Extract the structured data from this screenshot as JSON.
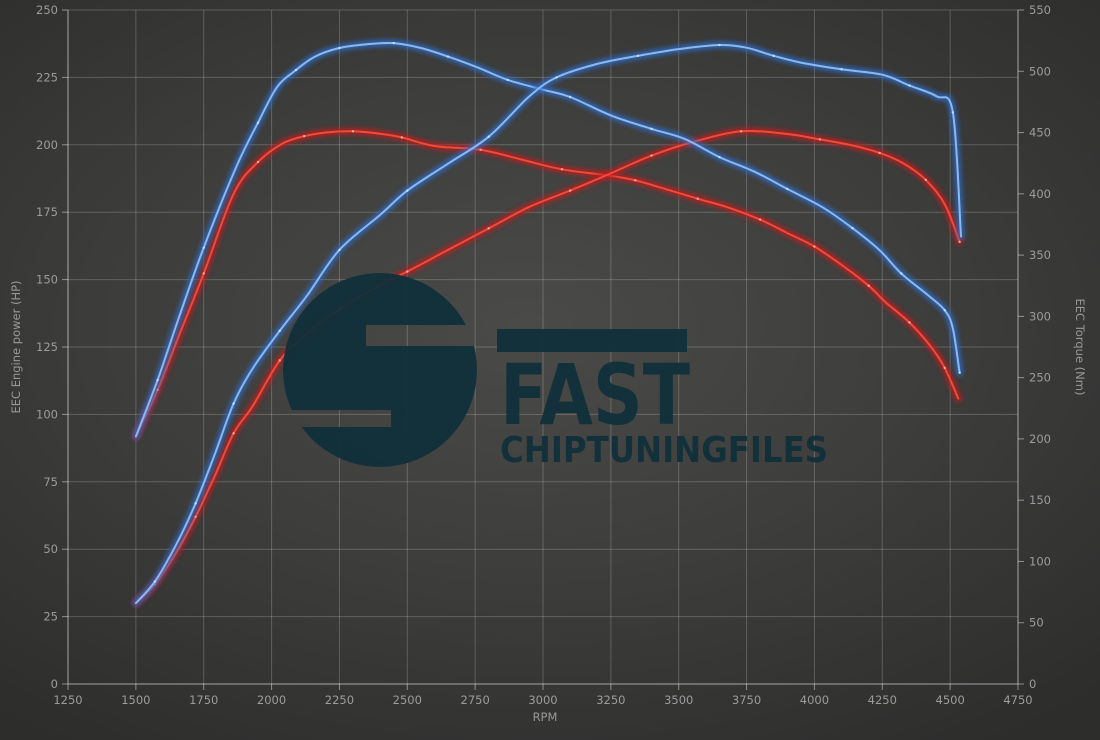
{
  "chart_data": {
    "type": "line",
    "x": {
      "label": "RPM",
      "min": 1250,
      "max": 4750,
      "ticks": [
        1250,
        1500,
        1750,
        2000,
        2250,
        2500,
        2750,
        3000,
        3250,
        3500,
        3750,
        4000,
        4250,
        4500,
        4750
      ]
    },
    "y_left": {
      "label": "EEC Engine power (HP)",
      "min": 0,
      "max": 250,
      "ticks": [
        0,
        25,
        50,
        75,
        100,
        125,
        150,
        175,
        200,
        225,
        250
      ]
    },
    "y_right": {
      "label": "EEC Torque (Nm)",
      "min": 0,
      "max": 550,
      "ticks": [
        0,
        50,
        100,
        150,
        200,
        250,
        300,
        350,
        400,
        450,
        500,
        550
      ]
    },
    "grid": {
      "vertical": true,
      "horizontal": true,
      "legend": "none"
    },
    "colors": {
      "blue_series": "#2f6cc8",
      "blue_core": "#8ab9ef",
      "red_series": "#bf1d1d",
      "red_core": "#f04a3a"
    },
    "series": [
      {
        "id": "red-torque",
        "axis": "right",
        "unit": "Nm",
        "color": "red",
        "points": [
          [
            1500,
            202
          ],
          [
            1580,
            240
          ],
          [
            1660,
            285
          ],
          [
            1750,
            335
          ],
          [
            1860,
            400
          ],
          [
            1950,
            426
          ],
          [
            2040,
            441
          ],
          [
            2120,
            447
          ],
          [
            2200,
            450
          ],
          [
            2300,
            451
          ],
          [
            2400,
            449
          ],
          [
            2480,
            446
          ],
          [
            2600,
            439
          ],
          [
            2770,
            436
          ],
          [
            2920,
            428
          ],
          [
            3070,
            420
          ],
          [
            3240,
            415
          ],
          [
            3340,
            411
          ],
          [
            3450,
            404
          ],
          [
            3570,
            396
          ],
          [
            3680,
            389
          ],
          [
            3800,
            379
          ],
          [
            3900,
            368
          ],
          [
            4000,
            357
          ],
          [
            4100,
            342
          ],
          [
            4200,
            325
          ],
          [
            4260,
            312
          ],
          [
            4350,
            295
          ],
          [
            4430,
            275
          ],
          [
            4480,
            258
          ],
          [
            4530,
            233
          ]
        ]
      },
      {
        "id": "red-power",
        "axis": "left",
        "unit": "HP",
        "color": "red",
        "points": [
          [
            1500,
            30
          ],
          [
            1570,
            37
          ],
          [
            1650,
            49
          ],
          [
            1720,
            62
          ],
          [
            1790,
            77
          ],
          [
            1860,
            93
          ],
          [
            1930,
            103
          ],
          [
            2030,
            120
          ],
          [
            2130,
            130
          ],
          [
            2250,
            139
          ],
          [
            2400,
            148
          ],
          [
            2500,
            153
          ],
          [
            2650,
            161
          ],
          [
            2800,
            169
          ],
          [
            2950,
            177
          ],
          [
            3100,
            183
          ],
          [
            3240,
            189
          ],
          [
            3400,
            196
          ],
          [
            3550,
            201
          ],
          [
            3730,
            205
          ],
          [
            3900,
            204
          ],
          [
            4020,
            202
          ],
          [
            4130,
            200
          ],
          [
            4240,
            197
          ],
          [
            4330,
            193
          ],
          [
            4410,
            187
          ],
          [
            4480,
            178
          ],
          [
            4535,
            164
          ]
        ]
      },
      {
        "id": "blue-torque",
        "axis": "right",
        "unit": "Nm",
        "color": "blue",
        "points": [
          [
            1500,
            202
          ],
          [
            1580,
            248
          ],
          [
            1660,
            300
          ],
          [
            1750,
            356
          ],
          [
            1870,
            422
          ],
          [
            1950,
            458
          ],
          [
            2020,
            487
          ],
          [
            2090,
            501
          ],
          [
            2160,
            512
          ],
          [
            2250,
            519
          ],
          [
            2350,
            522
          ],
          [
            2450,
            523
          ],
          [
            2550,
            519
          ],
          [
            2650,
            512
          ],
          [
            2760,
            503
          ],
          [
            2870,
            493
          ],
          [
            3000,
            485
          ],
          [
            3100,
            479
          ],
          [
            3250,
            464
          ],
          [
            3400,
            453
          ],
          [
            3520,
            445
          ],
          [
            3650,
            430
          ],
          [
            3780,
            418
          ],
          [
            3900,
            404
          ],
          [
            4030,
            389
          ],
          [
            4140,
            372
          ],
          [
            4240,
            354
          ],
          [
            4320,
            335
          ],
          [
            4420,
            317
          ],
          [
            4480,
            305
          ],
          [
            4510,
            290
          ],
          [
            4535,
            254
          ]
        ]
      },
      {
        "id": "blue-power",
        "axis": "left",
        "unit": "HP",
        "color": "blue",
        "points": [
          [
            1500,
            30
          ],
          [
            1570,
            38
          ],
          [
            1650,
            52
          ],
          [
            1720,
            67
          ],
          [
            1790,
            85
          ],
          [
            1860,
            104
          ],
          [
            1930,
            117
          ],
          [
            2030,
            131
          ],
          [
            2130,
            144
          ],
          [
            2250,
            161
          ],
          [
            2400,
            174
          ],
          [
            2500,
            183
          ],
          [
            2650,
            193
          ],
          [
            2800,
            203
          ],
          [
            2950,
            218
          ],
          [
            3050,
            225
          ],
          [
            3200,
            230
          ],
          [
            3350,
            233
          ],
          [
            3500,
            235.5
          ],
          [
            3650,
            237
          ],
          [
            3750,
            236
          ],
          [
            3850,
            233
          ],
          [
            3950,
            230.5
          ],
          [
            4100,
            228
          ],
          [
            4250,
            226
          ],
          [
            4350,
            222
          ],
          [
            4450,
            218
          ],
          [
            4510,
            212
          ],
          [
            4540,
            166
          ]
        ]
      }
    ]
  },
  "axes_text": {
    "x_label": "RPM",
    "left_label": "EEC Engine power (HP)",
    "right_label": "EEC Torque (Nm)"
  },
  "watermark": {
    "brand": "FAST",
    "subtitle": "CHIPTUNINGFILES",
    "color": "#10303a"
  }
}
